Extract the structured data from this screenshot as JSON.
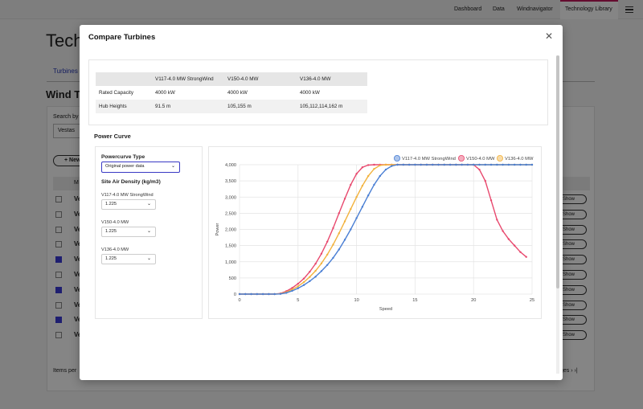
{
  "topnav": {
    "items": [
      "Dashboard",
      "Data",
      "Windnavigator",
      "Technology Library"
    ]
  },
  "background": {
    "title": "Tech",
    "tab": "Turbines",
    "subtitle": "Wind Tu",
    "search_label": "Search by",
    "search_value": "Vestas",
    "new_button": "+ New",
    "head_label": "M",
    "row_text": "Ve",
    "show_label": "Show",
    "items_per_page": "Items per",
    "pages": "ges  ›  ›|",
    "rows_checked": [
      false,
      false,
      false,
      false,
      true,
      false,
      true,
      false,
      true,
      false
    ]
  },
  "modal": {
    "title": "Compare Turbines",
    "close_icon": "close-icon",
    "specs": {
      "columns": [
        "",
        "V117-4.0 MW StrongWind",
        "V150-4.0 MW",
        "V136-4.0 MW"
      ],
      "rows": [
        [
          "Rated Capacity",
          "4000 kW",
          "4000 kW",
          "4000 kW"
        ],
        [
          "Hub Heights",
          "91.5 m",
          "105,155 m",
          "105,112,114,162 m"
        ]
      ]
    },
    "power_curve_title": "Power Curve",
    "controls": {
      "powercurve_type_label": "Powercurve Type",
      "powercurve_type_value": "Original power data",
      "air_density_label": "Site Air Density (kg/m3)",
      "turbines": [
        {
          "name": "V117-4.0 MW StrongWind",
          "density": "1.225"
        },
        {
          "name": "V150-4.0 MW",
          "density": "1.225"
        },
        {
          "name": "V136-4.0 MW",
          "density": "1.225"
        }
      ]
    }
  },
  "chart_data": {
    "type": "line",
    "xlabel": "Speed",
    "ylabel": "Power",
    "xlim": [
      0,
      25
    ],
    "ylim": [
      0,
      4000
    ],
    "xticks": [
      0,
      5,
      10,
      15,
      20,
      25
    ],
    "yticks": [
      0,
      500,
      1000,
      1500,
      2000,
      2500,
      3000,
      3500,
      4000
    ],
    "ytick_labels": [
      "0",
      "500",
      "1,000",
      "1,500",
      "2,000",
      "2,500",
      "3,000",
      "3,500",
      "4,000"
    ],
    "legend_position": "top-right",
    "x": [
      0,
      0.5,
      1,
      1.5,
      2,
      2.5,
      3,
      3.5,
      4,
      4.5,
      5,
      5.5,
      6,
      6.5,
      7,
      7.5,
      8,
      8.5,
      9,
      9.5,
      10,
      10.5,
      11,
      11.5,
      12,
      12.5,
      13,
      13.5,
      14,
      14.5,
      15,
      15.5,
      16,
      16.5,
      17,
      17.5,
      18,
      18.5,
      19,
      19.5,
      20,
      20.5,
      21,
      21.5,
      22,
      22.5,
      23,
      23.5,
      24,
      24.5,
      25
    ],
    "series": [
      {
        "name": "V117-4.0 MW StrongWind",
        "color": "#4a7fd4",
        "values": [
          0,
          0,
          0,
          0,
          0,
          0,
          0,
          5,
          40,
          100,
          180,
          280,
          400,
          540,
          710,
          900,
          1120,
          1380,
          1680,
          2000,
          2350,
          2700,
          3050,
          3380,
          3650,
          3850,
          3960,
          4000,
          4000,
          4000,
          4000,
          4000,
          4000,
          4000,
          4000,
          4000,
          4000,
          4000,
          4000,
          4000,
          4000,
          4000,
          4000,
          4000,
          4000,
          4000,
          4000,
          4000,
          4000,
          4000,
          4000
        ]
      },
      {
        "name": "V150-4.0 MW",
        "color": "#e8496e",
        "values": [
          0,
          0,
          0,
          0,
          0,
          0,
          0,
          20,
          90,
          190,
          320,
          480,
          690,
          940,
          1250,
          1620,
          2040,
          2500,
          2950,
          3380,
          3720,
          3920,
          3990,
          4000,
          4000,
          4000,
          4000,
          4000,
          4000,
          4000,
          4000,
          4000,
          4000,
          4000,
          4000,
          4000,
          4000,
          4000,
          4000,
          4000,
          4000,
          3850,
          3500,
          2900,
          2300,
          1950,
          1700,
          1500,
          1300,
          1150,
          null
        ]
      },
      {
        "name": "V136-4.0 MW",
        "color": "#f2b23d",
        "values": [
          0,
          0,
          0,
          0,
          0,
          0,
          0,
          12,
          60,
          140,
          240,
          370,
          530,
          720,
          950,
          1220,
          1530,
          1880,
          2250,
          2630,
          3000,
          3350,
          3650,
          3870,
          3980,
          4000,
          4000,
          4000,
          4000,
          4000,
          4000,
          4000,
          4000,
          4000,
          4000,
          4000,
          4000,
          4000,
          4000,
          4000,
          4000,
          4000,
          4000,
          4000,
          4000,
          4000,
          4000,
          4000,
          4000,
          4000,
          4000
        ]
      }
    ]
  }
}
